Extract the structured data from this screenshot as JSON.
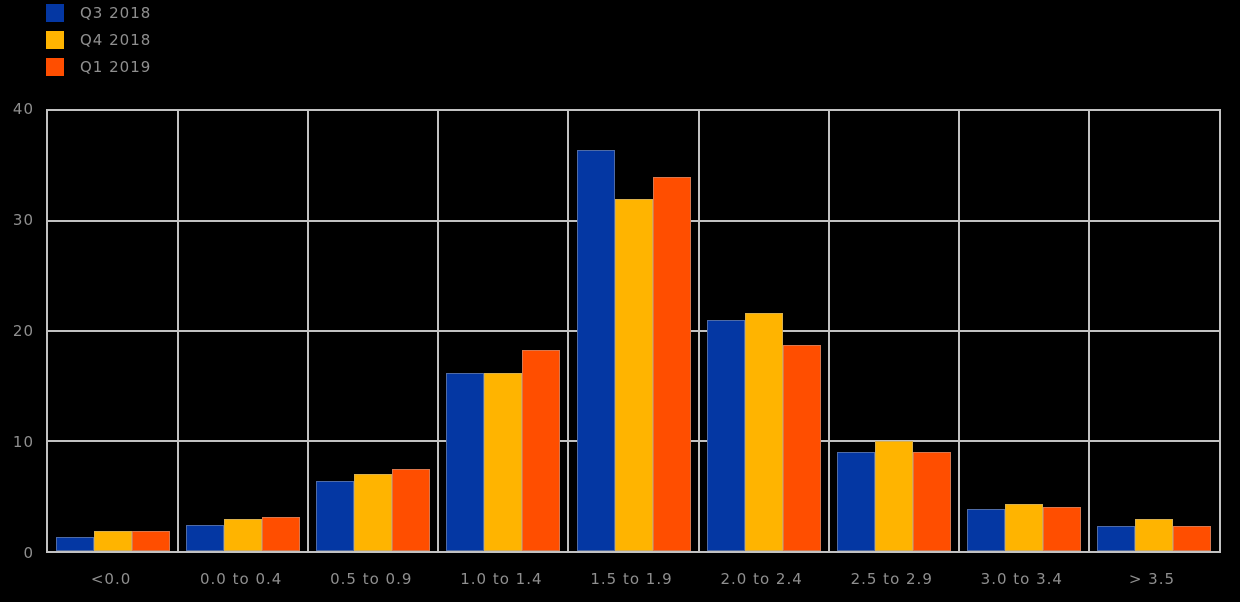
{
  "chart_data": {
    "type": "bar",
    "title": "",
    "xlabel": "",
    "ylabel": "",
    "categories": [
      "<0.0",
      "0.0 to 0.4",
      "0.5 to 0.9",
      "1.0 to 1.4",
      "1.5 to 1.9",
      "2.0 to 2.4",
      "2.5 to 2.9",
      "3.0 to 3.4",
      "> 3.5"
    ],
    "series": [
      {
        "name": "Q3 2018",
        "color": "#0437A3",
        "values": [
          1.3,
          2.4,
          6.4,
          16.2,
          36.5,
          21.0,
          9.0,
          3.8,
          2.3
        ]
      },
      {
        "name": "Q4 2018",
        "color": "#FFB400",
        "values": [
          1.8,
          2.9,
          7.0,
          16.2,
          32.0,
          21.6,
          10.0,
          4.3,
          2.9
        ]
      },
      {
        "name": "Q1 2019",
        "color": "#FF4E00",
        "values": [
          1.8,
          3.1,
          7.5,
          18.3,
          34.0,
          18.7,
          9.0,
          4.0,
          2.3
        ]
      }
    ],
    "ylim": [
      0,
      40
    ],
    "yticks": [
      0,
      10,
      20,
      30,
      40
    ],
    "grid": "on",
    "legend_position": "top-left",
    "background_color": "#000000",
    "grid_color": "#C2C2C2",
    "text_color": "#8F8F8F"
  }
}
